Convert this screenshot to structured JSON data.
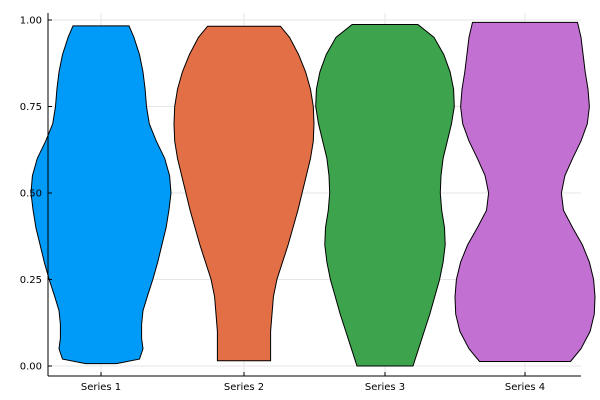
{
  "chart_data": {
    "type": "violin",
    "categories": [
      "Series 1",
      "Series 2",
      "Series 3",
      "Series 4"
    ],
    "ylim": [
      0,
      1
    ],
    "yticks": [
      {
        "value": 0.0,
        "label": "0.00"
      },
      {
        "value": 0.25,
        "label": "0.25"
      },
      {
        "value": 0.5,
        "label": "0.50"
      },
      {
        "value": 0.75,
        "label": "0.75"
      },
      {
        "value": 1.0,
        "label": "1.00"
      }
    ],
    "grid": true,
    "legend": "none",
    "series": [
      {
        "category": "Series 1",
        "color": "#009af9",
        "min": 0.007,
        "max": 0.983,
        "density": [
          [
            0.007,
            0.22
          ],
          [
            0.02,
            0.55
          ],
          [
            0.05,
            0.6
          ],
          [
            0.08,
            0.58
          ],
          [
            0.12,
            0.58
          ],
          [
            0.16,
            0.6
          ],
          [
            0.2,
            0.66
          ],
          [
            0.25,
            0.74
          ],
          [
            0.3,
            0.81
          ],
          [
            0.35,
            0.87
          ],
          [
            0.4,
            0.93
          ],
          [
            0.45,
            0.97
          ],
          [
            0.5,
            1.0
          ],
          [
            0.55,
            0.98
          ],
          [
            0.6,
            0.91
          ],
          [
            0.65,
            0.79
          ],
          [
            0.7,
            0.69
          ],
          [
            0.75,
            0.65
          ],
          [
            0.8,
            0.63
          ],
          [
            0.85,
            0.6
          ],
          [
            0.9,
            0.55
          ],
          [
            0.95,
            0.47
          ],
          [
            0.983,
            0.4
          ]
        ]
      },
      {
        "category": "Series 2",
        "color": "#e26f46",
        "min": 0.015,
        "max": 0.982,
        "density": [
          [
            0.015,
            0.38
          ],
          [
            0.05,
            0.38
          ],
          [
            0.1,
            0.38
          ],
          [
            0.15,
            0.4
          ],
          [
            0.2,
            0.42
          ],
          [
            0.25,
            0.47
          ],
          [
            0.3,
            0.55
          ],
          [
            0.35,
            0.63
          ],
          [
            0.4,
            0.7
          ],
          [
            0.45,
            0.77
          ],
          [
            0.5,
            0.83
          ],
          [
            0.55,
            0.89
          ],
          [
            0.6,
            0.95
          ],
          [
            0.65,
            0.99
          ],
          [
            0.7,
            1.0
          ],
          [
            0.75,
            0.99
          ],
          [
            0.8,
            0.95
          ],
          [
            0.85,
            0.88
          ],
          [
            0.9,
            0.78
          ],
          [
            0.95,
            0.65
          ],
          [
            0.982,
            0.52
          ]
        ]
      },
      {
        "category": "Series 3",
        "color": "#3da44d",
        "min": 0.0,
        "max": 0.987,
        "density": [
          [
            0.0,
            0.4
          ],
          [
            0.05,
            0.48
          ],
          [
            0.1,
            0.56
          ],
          [
            0.15,
            0.64
          ],
          [
            0.2,
            0.71
          ],
          [
            0.25,
            0.78
          ],
          [
            0.3,
            0.83
          ],
          [
            0.35,
            0.86
          ],
          [
            0.4,
            0.85
          ],
          [
            0.45,
            0.81
          ],
          [
            0.5,
            0.79
          ],
          [
            0.55,
            0.8
          ],
          [
            0.6,
            0.83
          ],
          [
            0.65,
            0.89
          ],
          [
            0.7,
            0.95
          ],
          [
            0.75,
            0.99
          ],
          [
            0.8,
            0.98
          ],
          [
            0.85,
            0.93
          ],
          [
            0.9,
            0.84
          ],
          [
            0.95,
            0.7
          ],
          [
            0.987,
            0.47
          ]
        ]
      },
      {
        "category": "Series 4",
        "color": "#c271d2",
        "min": 0.013,
        "max": 0.993,
        "density": [
          [
            0.013,
            0.65
          ],
          [
            0.05,
            0.8
          ],
          [
            0.1,
            0.93
          ],
          [
            0.15,
            0.99
          ],
          [
            0.2,
            1.0
          ],
          [
            0.25,
            0.98
          ],
          [
            0.3,
            0.92
          ],
          [
            0.35,
            0.82
          ],
          [
            0.4,
            0.68
          ],
          [
            0.45,
            0.55
          ],
          [
            0.5,
            0.52
          ],
          [
            0.55,
            0.57
          ],
          [
            0.6,
            0.68
          ],
          [
            0.65,
            0.8
          ],
          [
            0.7,
            0.89
          ],
          [
            0.75,
            0.92
          ],
          [
            0.8,
            0.9
          ],
          [
            0.85,
            0.86
          ],
          [
            0.9,
            0.83
          ],
          [
            0.95,
            0.8
          ],
          [
            0.993,
            0.75
          ]
        ]
      }
    ]
  }
}
